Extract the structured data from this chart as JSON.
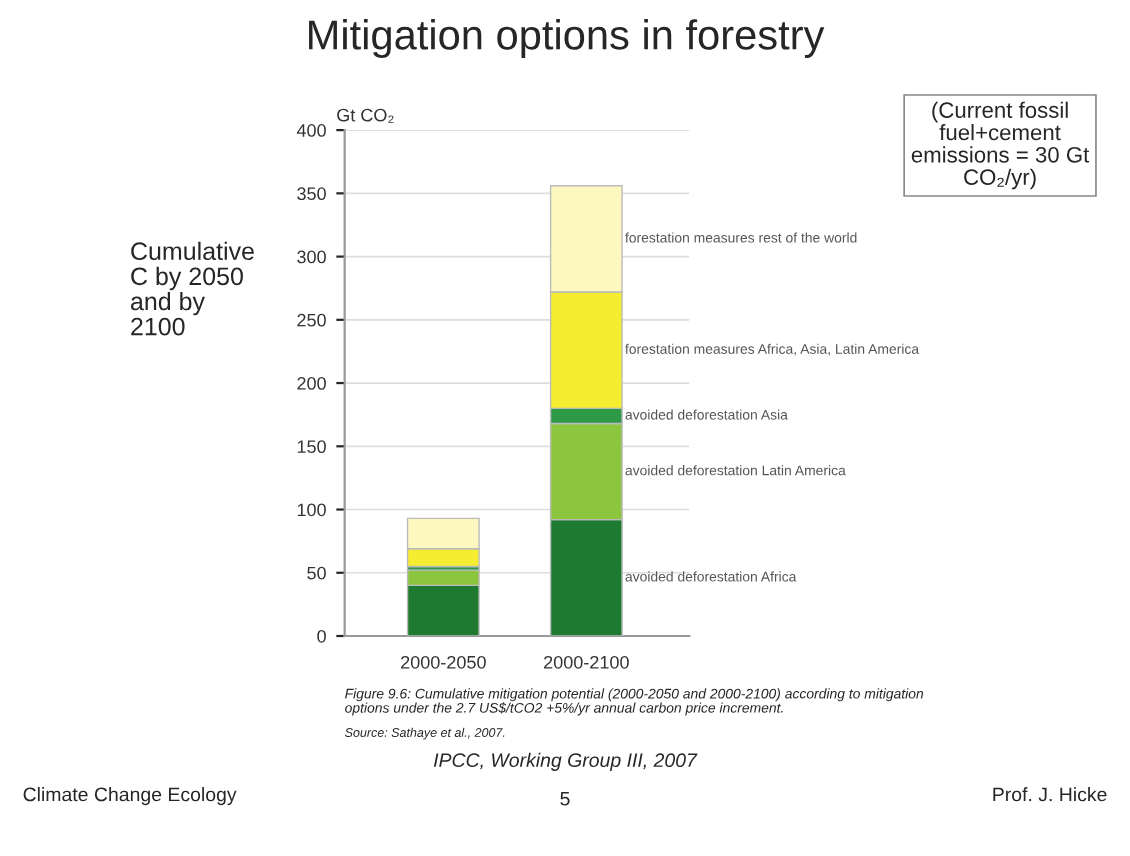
{
  "chart_data": {
    "type": "bar",
    "title": "Mitigation options in forestry",
    "ylabel": "Gt CO₂",
    "stacked": true,
    "categories": [
      "2000-2050",
      "2000-2100"
    ],
    "series": [
      {
        "name": "avoided deforestation Africa",
        "color": "#1e7a30",
        "values": [
          40,
          92
        ]
      },
      {
        "name": "avoided deforestation Latin America",
        "color": "#8cc63f",
        "values": [
          12,
          76
        ]
      },
      {
        "name": "avoided deforestation Asia",
        "color": "#2e9a48",
        "values": [
          3,
          12
        ]
      },
      {
        "name": "forestation measures Africa, Asia, Latin America",
        "color": "#f5ee30",
        "values": [
          14,
          92
        ]
      },
      {
        "name": "forestation measures rest of the world",
        "color": "#fdf7c0",
        "values": [
          24,
          84
        ]
      }
    ],
    "ylim": [
      0,
      400
    ],
    "yticks": [
      0,
      50,
      100,
      150,
      200,
      250,
      300,
      350,
      400
    ],
    "grid": "y",
    "legend": "right",
    "annotations": [
      "Cumulative C by 2050 and by 2100",
      "(Current fossil fuel+cement emissions = 30 Gt CO₂/yr)",
      "Figure 9.6: Cumulative mitigation potential (2000-2050 and 2000-2100) according to mitigation options under the 2.7 US$/tCO2 +5%/yr annual carbon price increment.",
      "Source: Sathaye et al., 2007.",
      "IPCC, Working Group III, 2007",
      "5",
      "Climate Change Ecology",
      "Prof. J. Hicke"
    ]
  }
}
